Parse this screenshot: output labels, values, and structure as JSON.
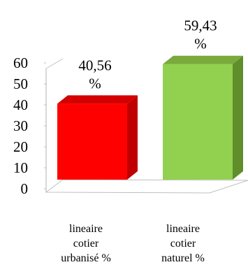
{
  "chart_data": {
    "type": "bar",
    "categories": [
      [
        "lineaire",
        "cotier",
        "urbanisé %"
      ],
      [
        "lineaire",
        "cotier",
        "naturel %"
      ]
    ],
    "values": [
      40.56,
      59.43
    ],
    "data_labels": [
      [
        "40,56",
        "%"
      ],
      [
        "59,43",
        "%"
      ]
    ],
    "yticks": [
      "0",
      "10",
      "20",
      "30",
      "40",
      "50",
      "60"
    ],
    "ylim": [
      0,
      60
    ],
    "grid": false,
    "legend": "none",
    "style": "3d",
    "colors": {
      "bars": [
        {
          "front": "#ff0000",
          "side": "#c00000",
          "top": "#d40000"
        },
        {
          "front": "#92d050",
          "side": "#5f8e2a",
          "top": "#7aaa3c"
        }
      ],
      "axis": "#bfbfbf",
      "text": "#000000"
    }
  }
}
